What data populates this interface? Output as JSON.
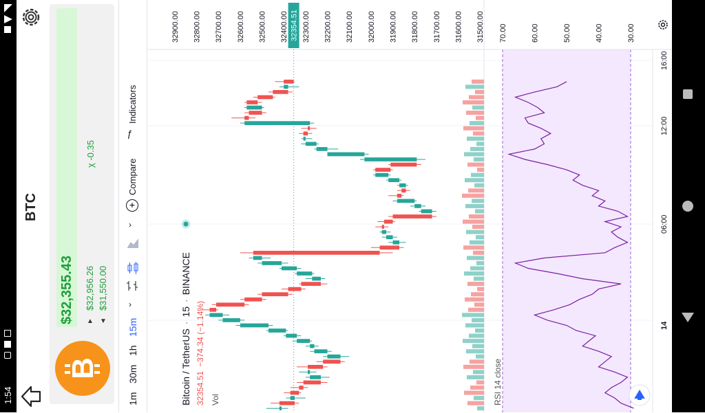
{
  "status": {
    "time": "1:54"
  },
  "app": {
    "coin_symbol": "BTC"
  },
  "price_card": {
    "price": "$32,355.43",
    "high": "$32,956.26",
    "low": "$31,550.00",
    "change": "-0.35",
    "change_symbol": "χ"
  },
  "toolbar": {
    "intervals": [
      "1m",
      "30m",
      "1h",
      "15m"
    ],
    "active_interval": "15m",
    "compare_label": "Compare",
    "indicators_label": "Indicators"
  },
  "legend": {
    "pair": "Bitcoin / TetherUS",
    "interval": "15",
    "exchange": "BINANCE",
    "last": "32354.51",
    "change": "−374.34 (−1.14%)",
    "vol_label": "Vol",
    "rsi_label": "RSI 14 close"
  },
  "price_axis": {
    "ticks": [
      "32900.00",
      "32800.00",
      "32700.00",
      "32600.00",
      "32500.00",
      "32400.00",
      "32300.00",
      "32200.00",
      "32100.00",
      "32000.00",
      "31900.00",
      "31800.00",
      "31700.00",
      "31600.00",
      "31500.00"
    ],
    "current": "32354.51"
  },
  "rsi_axis": {
    "ticks": [
      "70.00",
      "60.00",
      "50.00",
      "40.00",
      "30.00"
    ]
  },
  "time_axis": {
    "ticks": [
      "16:00",
      "12:00",
      "06:00",
      "14"
    ]
  },
  "colors": {
    "up": "#26a69a",
    "down": "#ef5350",
    "rsi_line": "#7b1fa2",
    "rsi_band": "#f3e8fd",
    "card_price_bg": "#d7f7d7",
    "btc_orange": "#f7931a"
  },
  "chart_data": {
    "type": "candlestick",
    "series": [
      {
        "name": "Bitcoin / TetherUS",
        "ohlc": [
          [
            32410,
            32480,
            32380,
            32420
          ],
          [
            32420,
            32460,
            32330,
            32350
          ],
          [
            32350,
            32390,
            32300,
            32370
          ],
          [
            32370,
            32400,
            32320,
            32330
          ],
          [
            32330,
            32370,
            32290,
            32310
          ],
          [
            32310,
            32340,
            32200,
            32230
          ],
          [
            32230,
            32300,
            32190,
            32280
          ],
          [
            32280,
            32330,
            32250,
            32290
          ],
          [
            32290,
            32340,
            32200,
            32220
          ],
          [
            32220,
            32250,
            32120,
            32140
          ],
          [
            32140,
            32220,
            32100,
            32200
          ],
          [
            32200,
            32280,
            32180,
            32260
          ],
          [
            32260,
            32300,
            32240,
            32280
          ],
          [
            32280,
            32360,
            32270,
            32340
          ],
          [
            32340,
            32400,
            32320,
            32390
          ],
          [
            32390,
            32480,
            32380,
            32470
          ],
          [
            32470,
            32620,
            32450,
            32600
          ],
          [
            32600,
            32700,
            32580,
            32680
          ],
          [
            32680,
            32760,
            32650,
            32740
          ],
          [
            32740,
            32780,
            32700,
            32710
          ],
          [
            32710,
            32730,
            32560,
            32580
          ],
          [
            32580,
            32600,
            32480,
            32500
          ],
          [
            32500,
            32520,
            32360,
            32380
          ],
          [
            32380,
            32410,
            32300,
            32320
          ],
          [
            32320,
            32330,
            32200,
            32230
          ],
          [
            32230,
            32300,
            32210,
            32270
          ],
          [
            32270,
            32350,
            32260,
            32340
          ],
          [
            32340,
            32420,
            32320,
            32410
          ],
          [
            32410,
            32520,
            32380,
            32500
          ],
          [
            32500,
            32560,
            32460,
            32540
          ],
          [
            32540,
            32600,
            31900,
            31960
          ],
          [
            31960,
            32000,
            31850,
            31870
          ],
          [
            31870,
            31920,
            31840,
            31900
          ],
          [
            31900,
            31950,
            31880,
            31930
          ],
          [
            31930,
            31960,
            31910,
            31950
          ],
          [
            31950,
            31980,
            31920,
            31940
          ],
          [
            31940,
            31970,
            31890,
            31900
          ],
          [
            31900,
            31920,
            31700,
            31720
          ],
          [
            31720,
            31780,
            31700,
            31770
          ],
          [
            31770,
            31820,
            31750,
            31800
          ],
          [
            31800,
            31900,
            31790,
            31880
          ],
          [
            31880,
            31920,
            31850,
            31860
          ],
          [
            31860,
            31880,
            31820,
            31840
          ],
          [
            31840,
            31880,
            31830,
            31870
          ],
          [
            31870,
            31930,
            31860,
            31920
          ],
          [
            31920,
            31990,
            31910,
            31980
          ],
          [
            31980,
            31990,
            31900,
            31910
          ],
          [
            31910,
            31920,
            31770,
            31790
          ],
          [
            31790,
            32050,
            31750,
            32030
          ],
          [
            32030,
            32200,
            32010,
            32200
          ],
          [
            32200,
            32260,
            32150,
            32250
          ],
          [
            32250,
            32320,
            32240,
            32300
          ],
          [
            32300,
            32320,
            32270,
            32310
          ],
          [
            32310,
            32330,
            32270,
            32290
          ],
          [
            32290,
            32320,
            32250,
            32280
          ],
          [
            32280,
            32600,
            32260,
            32580
          ],
          [
            32580,
            32640,
            32530,
            32560
          ],
          [
            32560,
            32580,
            32480,
            32500
          ],
          [
            32500,
            32580,
            32490,
            32570
          ],
          [
            32570,
            32580,
            32500,
            32520
          ],
          [
            32520,
            32540,
            32440,
            32450
          ],
          [
            32450,
            32470,
            32360,
            32380
          ],
          [
            32380,
            32420,
            32330,
            32400
          ],
          [
            32400,
            32440,
            32350,
            32355
          ]
        ]
      }
    ],
    "rsi_series": {
      "name": "RSI 14 close",
      "values": [
        29,
        33,
        35,
        38,
        36,
        33,
        31,
        35,
        40,
        38,
        36,
        40,
        45,
        43,
        41,
        47,
        50,
        56,
        60,
        54,
        49,
        46,
        42,
        40,
        33,
        45,
        53,
        62,
        66,
        57,
        38,
        35,
        31,
        34,
        36,
        33,
        38,
        31,
        34,
        40,
        38,
        42,
        40,
        45,
        48,
        46,
        50,
        56,
        63,
        68,
        60,
        57,
        58,
        55,
        58,
        62,
        63,
        57,
        59,
        62,
        66,
        60,
        53,
        50
      ]
    },
    "y_range": [
      31450,
      32950
    ],
    "rsi_range": [
      20,
      80
    ],
    "rsi_bands": [
      30,
      70
    ]
  }
}
